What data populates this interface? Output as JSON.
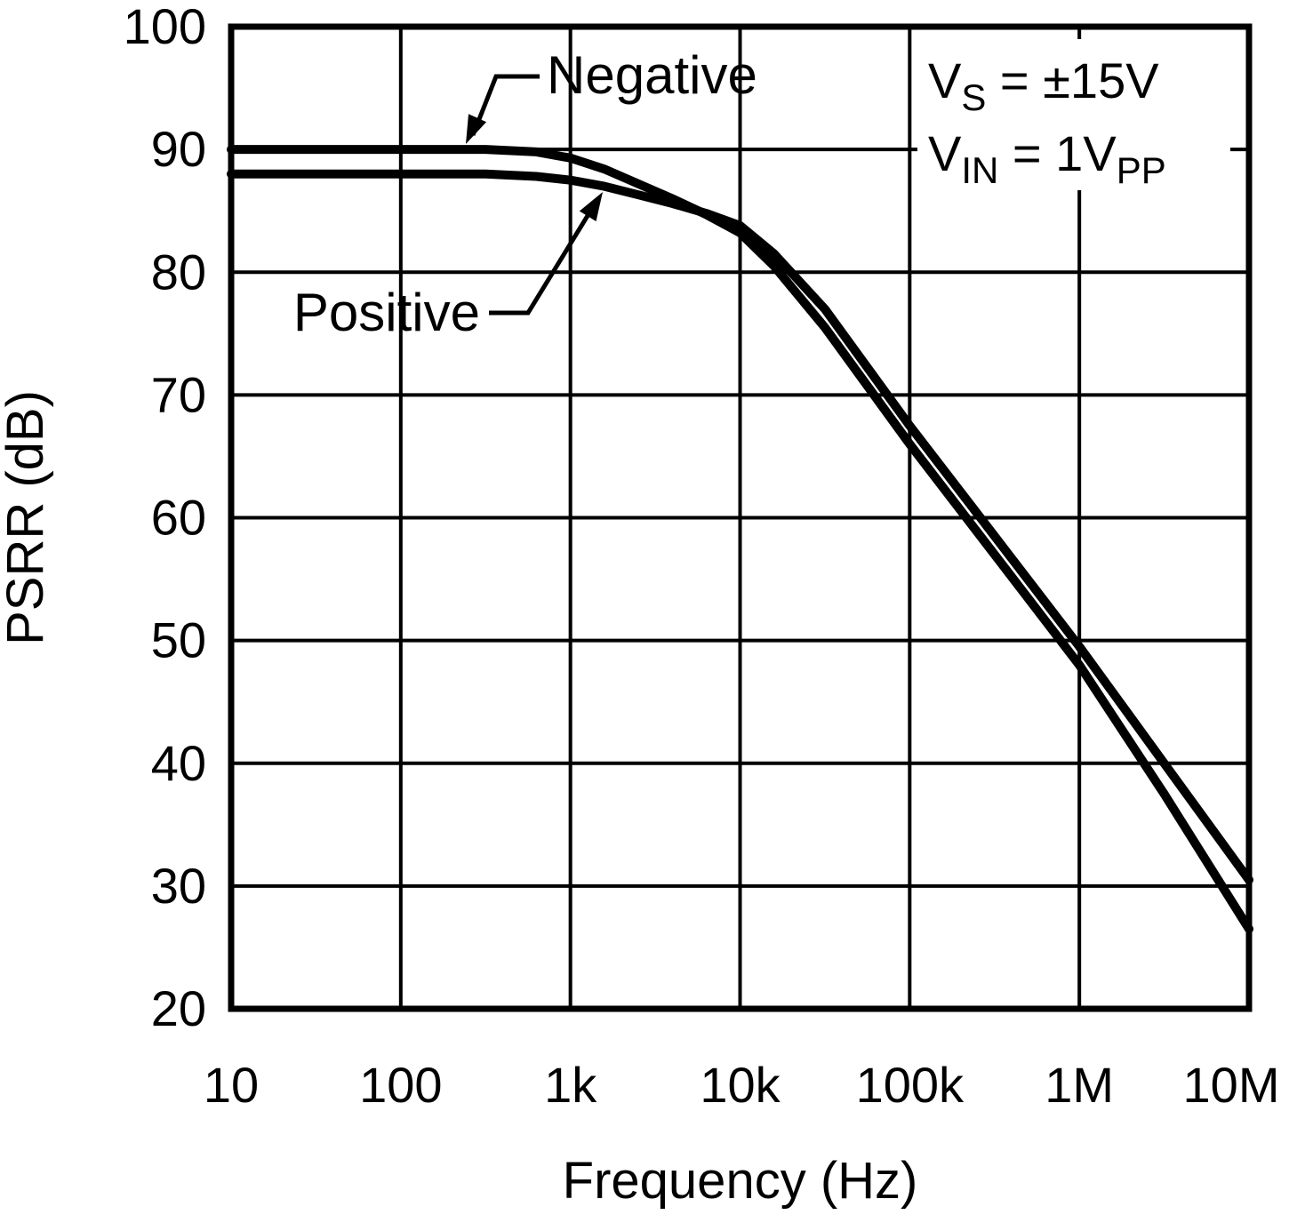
{
  "chart_data": {
    "type": "line",
    "title": "",
    "xlabel": "Frequency (Hz)",
    "ylabel": "PSRR (dB)",
    "x_scale": "log",
    "xlim": [
      10,
      10000000
    ],
    "ylim": [
      20,
      100
    ],
    "grid": true,
    "x_ticks": [
      {
        "value": 10,
        "label": "10"
      },
      {
        "value": 100,
        "label": "100"
      },
      {
        "value": 1000,
        "label": "1k"
      },
      {
        "value": 10000,
        "label": "10k"
      },
      {
        "value": 100000,
        "label": "100k"
      },
      {
        "value": 1000000,
        "label": "1M"
      },
      {
        "value": 10000000,
        "label": "10M"
      }
    ],
    "y_ticks": [
      {
        "value": 100,
        "label": "100"
      },
      {
        "value": 90,
        "label": "90"
      },
      {
        "value": 80,
        "label": "80"
      },
      {
        "value": 70,
        "label": "70"
      },
      {
        "value": 60,
        "label": "60"
      },
      {
        "value": 50,
        "label": "50"
      },
      {
        "value": 40,
        "label": "40"
      },
      {
        "value": 30,
        "label": "30"
      },
      {
        "value": 20,
        "label": "20"
      }
    ],
    "series": [
      {
        "name": "Negative",
        "points": [
          [
            10,
            90
          ],
          [
            100,
            90
          ],
          [
            316,
            90
          ],
          [
            631,
            89.8
          ],
          [
            1000,
            89.3
          ],
          [
            1585,
            88.4
          ],
          [
            2512,
            87.2
          ],
          [
            3981,
            86.0
          ],
          [
            6310,
            84.7
          ],
          [
            10000,
            83.2
          ],
          [
            15849,
            80.5
          ],
          [
            31623,
            75.5
          ],
          [
            100000,
            66
          ],
          [
            316228,
            57
          ],
          [
            1000000,
            48
          ],
          [
            3162278,
            37.5
          ],
          [
            10000000,
            26.5
          ]
        ]
      },
      {
        "name": "Positive",
        "points": [
          [
            10,
            88
          ],
          [
            100,
            88
          ],
          [
            316,
            88
          ],
          [
            631,
            87.8
          ],
          [
            1000,
            87.5
          ],
          [
            1585,
            87.0
          ],
          [
            2512,
            86.3
          ],
          [
            3981,
            85.6
          ],
          [
            6310,
            84.8
          ],
          [
            10000,
            83.8
          ],
          [
            15849,
            81.5
          ],
          [
            31623,
            77
          ],
          [
            100000,
            67.5
          ],
          [
            316228,
            58.5
          ],
          [
            1000000,
            49.5
          ],
          [
            3162278,
            40
          ],
          [
            10000000,
            30.5
          ]
        ]
      }
    ],
    "conditions": [
      {
        "parts": [
          {
            "text": "V"
          },
          {
            "sub": "S"
          },
          {
            "text": " = ±15V"
          }
        ]
      },
      {
        "parts": [
          {
            "text": "V"
          },
          {
            "sub": "IN"
          },
          {
            "text": " = 1V"
          },
          {
            "sub": "PP"
          }
        ]
      }
    ],
    "colors": {
      "line": "#000000",
      "grid": "#000000",
      "text": "#000000",
      "background": "#ffffff"
    }
  }
}
